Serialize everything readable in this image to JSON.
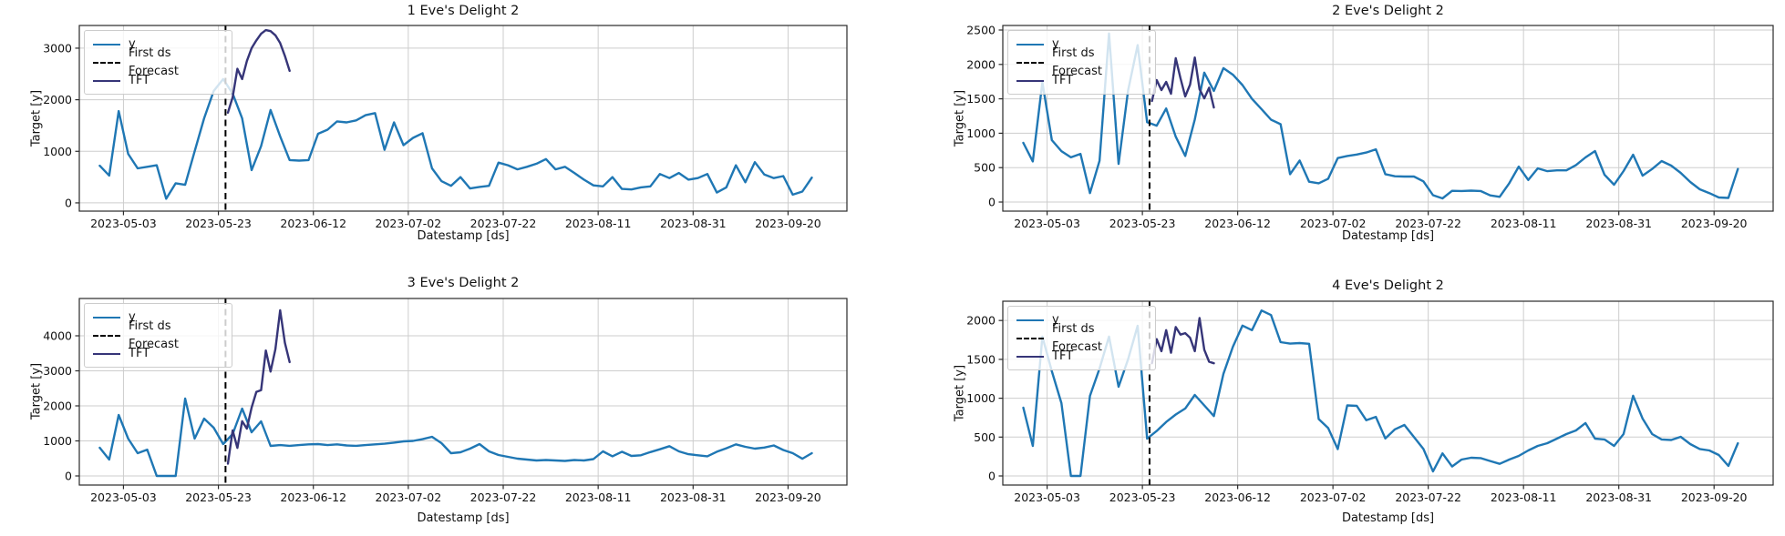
{
  "figure": {
    "colors": {
      "y_line": "#1f77b4",
      "tft_line": "#363578",
      "forecast_line": "#000000",
      "grid": "#cdcdcd",
      "spine": "#2a2a2a",
      "text": "#111111"
    }
  },
  "chart_data": [
    {
      "type": "line",
      "title": "1 Eve's Delight 2",
      "xlabel": "Datestamp [ds]",
      "ylabel": "Target [y]",
      "legend": [
        {
          "label": "y"
        },
        {
          "label": "First ds Forecast"
        },
        {
          "label": "TFT"
        }
      ],
      "legend_position": "upper left",
      "grid": true,
      "yticks": [
        0,
        1000,
        2000,
        3000
      ],
      "ylim": [
        -160,
        3440
      ],
      "xlim_days": [
        -4.3,
        157.4
      ],
      "xtick_days": [
        5,
        25,
        45,
        65,
        85,
        105,
        125,
        145
      ],
      "xtick_labels": [
        "2023-05-03",
        "2023-05-23",
        "2023-06-12",
        "2023-07-02",
        "2023-07-22",
        "2023-08-11",
        "2023-08-31",
        "2023-09-20"
      ],
      "forecast_vline_day": 26.5,
      "series": {
        "y": {
          "name": "y",
          "days": [
            0,
            2,
            4,
            6,
            8,
            10,
            12,
            14,
            16,
            18,
            20,
            22,
            24,
            26,
            28,
            30,
            32,
            34,
            36,
            38,
            40,
            42,
            44,
            46,
            48,
            50,
            52,
            54,
            56,
            58,
            60,
            62,
            64,
            66,
            68,
            70,
            72,
            74,
            76,
            78,
            80,
            82,
            84,
            86,
            88,
            90,
            92,
            94,
            96,
            98,
            100,
            102,
            104,
            106,
            108,
            110,
            112,
            114,
            116,
            118,
            120,
            122,
            124,
            126,
            128,
            130,
            132,
            134,
            136,
            138,
            140,
            142,
            144,
            146,
            148,
            150
          ],
          "values": [
            720,
            530,
            1780,
            950,
            670,
            700,
            730,
            80,
            380,
            350,
            1000,
            1640,
            2170,
            2400,
            2120,
            1640,
            635,
            1100,
            1800,
            1290,
            830,
            820,
            830,
            1340,
            1420,
            1580,
            1560,
            1600,
            1700,
            1740,
            1030,
            1560,
            1120,
            1260,
            1350,
            670,
            420,
            330,
            500,
            280,
            310,
            330,
            780,
            730,
            650,
            700,
            760,
            850,
            650,
            700,
            580,
            450,
            340,
            320,
            500,
            270,
            260,
            300,
            320,
            560,
            480,
            580,
            450,
            480,
            560,
            200,
            300,
            730,
            400,
            790,
            550,
            480,
            520,
            160,
            220,
            490
          ]
        },
        "tft": {
          "name": "TFT",
          "days": [
            27,
            28,
            29,
            30,
            31,
            32,
            33,
            34,
            35,
            36,
            37,
            38,
            39,
            40
          ],
          "values": [
            1750,
            2050,
            2600,
            2400,
            2750,
            3000,
            3150,
            3280,
            3350,
            3330,
            3250,
            3100,
            2850,
            2560
          ]
        }
      }
    },
    {
      "type": "line",
      "title": "2 Eve's Delight 2",
      "xlabel": "Datestamp [ds]",
      "ylabel": "Target [y]",
      "legend": [
        {
          "label": "y"
        },
        {
          "label": "First ds Forecast"
        },
        {
          "label": "TFT"
        }
      ],
      "legend_position": "upper left",
      "grid": true,
      "yticks": [
        0,
        500,
        1000,
        1500,
        2000,
        2500
      ],
      "ylim": [
        -132,
        2566
      ],
      "xlim_days": [
        -4.3,
        157.4
      ],
      "xtick_days": [
        5,
        25,
        45,
        65,
        85,
        105,
        125,
        145
      ],
      "xtick_labels": [
        "2023-05-03",
        "2023-05-23",
        "2023-06-12",
        "2023-07-02",
        "2023-07-22",
        "2023-08-11",
        "2023-08-31",
        "2023-09-20"
      ],
      "forecast_vline_day": 26.5,
      "series": {
        "y": {
          "name": "y",
          "days": [
            0,
            2,
            4,
            6,
            8,
            10,
            12,
            14,
            16,
            18,
            20,
            22,
            24,
            26,
            28,
            30,
            32,
            34,
            36,
            38,
            40,
            42,
            44,
            46,
            48,
            50,
            52,
            54,
            56,
            58,
            60,
            62,
            64,
            66,
            68,
            70,
            72,
            74,
            76,
            78,
            80,
            82,
            84,
            86,
            88,
            90,
            92,
            94,
            96,
            98,
            100,
            102,
            104,
            106,
            108,
            110,
            112,
            114,
            116,
            118,
            120,
            122,
            124,
            126,
            128,
            130,
            132,
            134,
            136,
            138,
            140,
            142,
            144,
            146,
            148,
            150
          ],
          "values": [
            860,
            590,
            1740,
            900,
            740,
            650,
            700,
            130,
            600,
            2450,
            555,
            1620,
            2280,
            1160,
            1110,
            1360,
            950,
            670,
            1200,
            1881,
            1615,
            1946,
            1850,
            1700,
            1500,
            1351,
            1197,
            1131,
            405,
            603,
            295,
            273,
            339,
            639,
            669,
            691,
            720,
            766,
            405,
            374,
            370,
            370,
            300,
            100,
            53,
            163,
            160,
            165,
            160,
            97,
            75,
            273,
            515,
            320,
            490,
            449,
            460,
            460,
            537,
            648,
            741,
            397,
            251,
            450,
            688,
            384,
            480,
            595,
            529,
            423,
            291,
            185,
            130,
            66,
            60,
            480
          ]
        },
        "tft": {
          "name": "TFT",
          "days": [
            27,
            28,
            29,
            30,
            31,
            32,
            33,
            34,
            35,
            36,
            37,
            38,
            39,
            40
          ],
          "values": [
            1468,
            1772,
            1627,
            1746,
            1574,
            2090,
            1799,
            1534,
            1706,
            2101,
            1639,
            1507,
            1661,
            1374
          ]
        }
      }
    },
    {
      "type": "line",
      "title": "3 Eve's Delight 2",
      "xlabel": "Datestamp [ds]",
      "ylabel": "Target [y]",
      "legend": [
        {
          "label": "y"
        },
        {
          "label": "First ds Forecast"
        },
        {
          "label": "TFT"
        }
      ],
      "legend_position": "upper left",
      "grid": true,
      "yticks": [
        0,
        1000,
        2000,
        3000,
        4000
      ],
      "ylim": [
        -260,
        5065
      ],
      "xlim_days": [
        -4.3,
        157.4
      ],
      "xtick_days": [
        5,
        25,
        45,
        65,
        85,
        105,
        125,
        145
      ],
      "xtick_labels": [
        "2023-05-03",
        "2023-05-23",
        "2023-06-12",
        "2023-07-02",
        "2023-07-22",
        "2023-08-11",
        "2023-08-31",
        "2023-09-20"
      ],
      "forecast_vline_day": 26.5,
      "series": {
        "y": {
          "name": "y",
          "days": [
            0,
            2,
            4,
            6,
            8,
            10,
            12,
            14,
            16,
            18,
            20,
            22,
            24,
            26,
            28,
            30,
            32,
            34,
            36,
            38,
            40,
            42,
            44,
            46,
            48,
            50,
            52,
            54,
            56,
            58,
            60,
            62,
            64,
            66,
            68,
            70,
            72,
            74,
            76,
            78,
            80,
            82,
            84,
            86,
            88,
            90,
            92,
            94,
            96,
            98,
            100,
            102,
            104,
            106,
            108,
            110,
            112,
            114,
            116,
            118,
            120,
            122,
            124,
            126,
            128,
            130,
            132,
            134,
            136,
            138,
            140,
            142,
            144,
            146,
            148,
            150
          ],
          "values": [
            805,
            468,
            1740,
            1065,
            650,
            750,
            0,
            0,
            0,
            2207,
            1065,
            1636,
            1376,
            909,
            1195,
            1922,
            1247,
            1558,
            857,
            880,
            860,
            880,
            900,
            909,
            880,
            900,
            870,
            860,
            880,
            900,
            920,
            950,
            987,
            1000,
            1050,
            1117,
            935,
            649,
            675,
            779,
            909,
            701,
            597,
            545,
            493,
            467,
            441,
            454,
            441,
            428,
            454,
            441,
            480,
            700,
            560,
            690,
            570,
            590,
            680,
            760,
            850,
            700,
            620,
            590,
            560,
            690,
            790,
            900,
            830,
            780,
            810,
            870,
            740,
            650,
            490,
            650
          ]
        },
        "tft": {
          "name": "TFT",
          "days": [
            27,
            28,
            29,
            30,
            31,
            32,
            33,
            34,
            35,
            36,
            37,
            38,
            39,
            40
          ],
          "values": [
            350,
            1300,
            800,
            1560,
            1350,
            1950,
            2400,
            2450,
            3580,
            2980,
            3620,
            4727,
            3800,
            3250
          ]
        }
      }
    },
    {
      "type": "line",
      "title": "4 Eve's Delight 2",
      "xlabel": "Datestamp [ds]",
      "ylabel": "Target [y]",
      "legend": [
        {
          "label": "y"
        },
        {
          "label": "First ds Forecast"
        },
        {
          "label": "TFT"
        }
      ],
      "legend_position": "upper left",
      "grid": true,
      "yticks": [
        0,
        500,
        1000,
        1500,
        2000
      ],
      "ylim": [
        -117,
        2248
      ],
      "xlim_days": [
        -4.3,
        157.4
      ],
      "xtick_days": [
        5,
        25,
        45,
        65,
        85,
        105,
        125,
        145
      ],
      "xtick_labels": [
        "2023-05-03",
        "2023-05-23",
        "2023-06-12",
        "2023-07-02",
        "2023-07-22",
        "2023-08-11",
        "2023-08-31",
        "2023-09-20"
      ],
      "forecast_vline_day": 26.5,
      "series": {
        "y": {
          "name": "y",
          "days": [
            0,
            2,
            4,
            6,
            8,
            10,
            12,
            14,
            16,
            18,
            20,
            22,
            24,
            26,
            28,
            30,
            32,
            34,
            36,
            38,
            40,
            42,
            44,
            46,
            48,
            50,
            52,
            54,
            56,
            58,
            60,
            62,
            64,
            66,
            68,
            70,
            72,
            74,
            76,
            78,
            80,
            82,
            84,
            86,
            88,
            90,
            92,
            94,
            96,
            98,
            100,
            102,
            104,
            106,
            108,
            110,
            112,
            114,
            116,
            118,
            120,
            122,
            124,
            126,
            128,
            130,
            132,
            134,
            136,
            138,
            140,
            142,
            144,
            146,
            148,
            150
          ],
          "values": [
            878,
            386,
            1792,
            1347,
            937,
            0,
            0,
            1030,
            1382,
            1792,
            1148,
            1500,
            1932,
            480,
            578,
            694,
            790,
            868,
            1042,
            907,
            771,
            1314,
            1663,
            1934,
            1876,
            2128,
            2070,
            1721,
            1702,
            1710,
            1700,
            732,
            616,
            345,
            907,
            902,
            717,
            760,
            483,
            600,
            656,
            500,
            347,
            59,
            290,
            122,
            211,
            234,
            230,
            192,
            156,
            211,
            258,
            328,
            387,
            422,
            480,
            539,
            586,
            680,
            480,
            469,
            387,
            539,
            1031,
            738,
            539,
            469,
            462,
            504,
            410,
            347,
            328,
            269,
            129,
            420
          ]
        },
        "tft": {
          "name": "TFT",
          "days": [
            27,
            28,
            29,
            30,
            31,
            32,
            33,
            34,
            35,
            36,
            37,
            38,
            39,
            40
          ],
          "values": [
            1450,
            1760,
            1605,
            1876,
            1585,
            1915,
            1818,
            1837,
            1779,
            1605,
            2031,
            1624,
            1469,
            1450
          ]
        }
      }
    }
  ]
}
